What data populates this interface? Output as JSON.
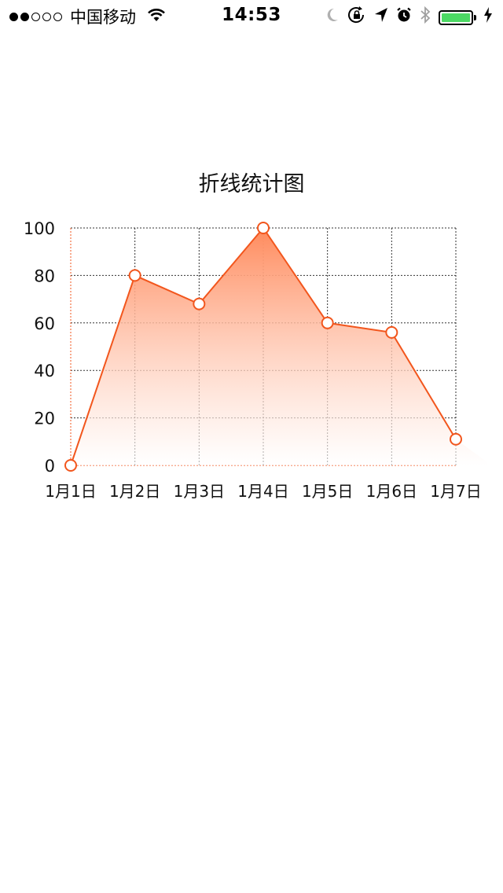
{
  "status_bar": {
    "signal_dots": [
      "full",
      "full",
      "empty",
      "empty",
      "empty"
    ],
    "carrier": "中国移动",
    "time": "14:53",
    "icons": [
      "wifi-icon",
      "moon-icon",
      "rotation-lock-icon",
      "location-arrow-icon",
      "alarm-icon",
      "bluetooth-icon",
      "battery-icon",
      "charging-bolt-icon"
    ],
    "battery_level": 1.0,
    "battery_color": "#4cd964"
  },
  "chart_data": {
    "type": "area",
    "title": "折线统计图",
    "categories": [
      "1月1日",
      "1月2日",
      "1月3日",
      "1月4日",
      "1月5日",
      "1月6日",
      "1月7日"
    ],
    "values": [
      0,
      80,
      68,
      100,
      60,
      56,
      11
    ],
    "ylim": [
      0,
      100
    ],
    "yticks": [
      "0",
      "20",
      "40",
      "60",
      "80",
      "100"
    ],
    "grid": true,
    "line_color": "#f2561d",
    "fill_top_color": "#ff8a5c"
  }
}
